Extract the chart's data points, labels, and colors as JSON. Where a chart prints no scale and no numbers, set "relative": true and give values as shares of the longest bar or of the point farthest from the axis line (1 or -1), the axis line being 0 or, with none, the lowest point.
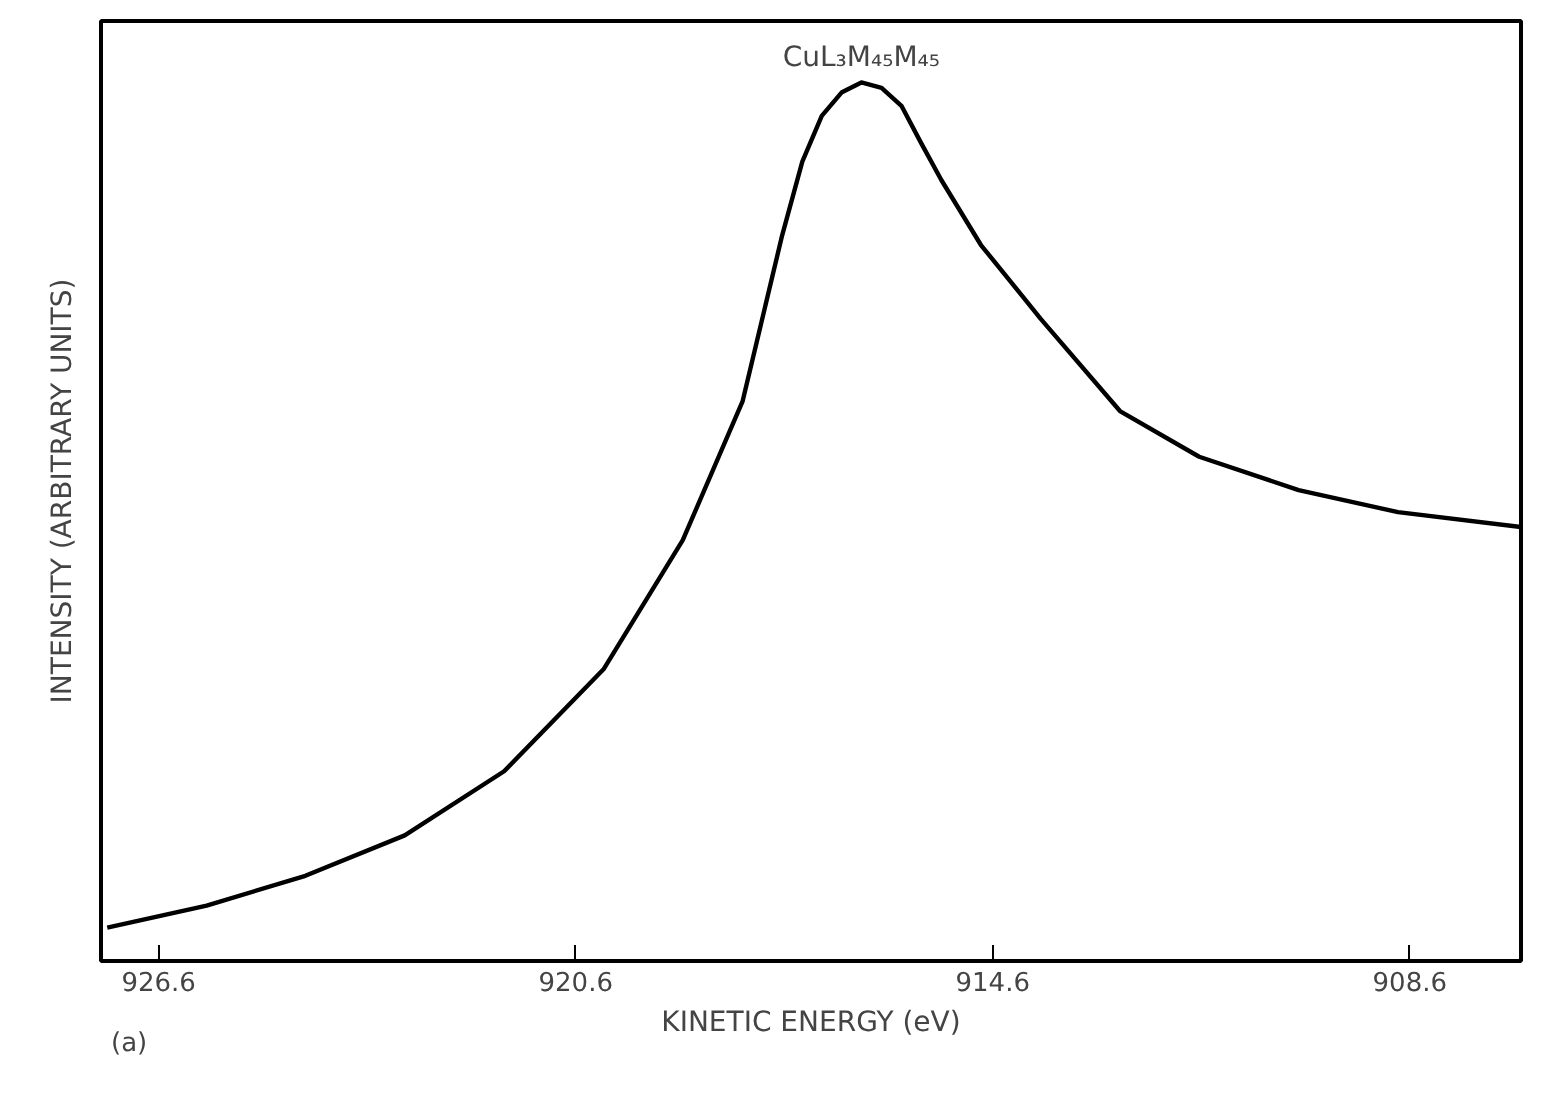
{
  "chart_data": {
    "type": "line",
    "xlabel": "KINETIC ENERGY (eV)",
    "ylabel": "INTENSITY (ARBITRARY UNITS)",
    "relative": true,
    "xlim": [
      927.43,
      907.0
    ],
    "xticks": [
      926.6,
      920.6,
      914.6,
      908.6
    ],
    "grid": false,
    "marker": "none",
    "line_style": "solid",
    "series": [
      {
        "color": "#000000",
        "x": [
          927.34,
          925.91,
          924.49,
          923.06,
          921.63,
          920.2,
          919.06,
          918.2,
          917.63,
          917.34,
          917.06,
          916.77,
          916.49,
          916.2,
          915.91,
          915.63,
          915.34,
          914.77,
          913.91,
          912.77,
          911.63,
          910.2,
          908.77,
          907.0
        ],
        "values": [
          0.038,
          0.063,
          0.097,
          0.143,
          0.216,
          0.332,
          0.479,
          0.637,
          0.826,
          0.91,
          0.962,
          0.989,
          1.0,
          0.994,
          0.973,
          0.931,
          0.889,
          0.815,
          0.731,
          0.626,
          0.574,
          0.536,
          0.511,
          0.494
        ]
      }
    ],
    "annotations": [
      {
        "text": "CuL₃M₄₅M₄₅",
        "x": 916.49,
        "y": 1.0
      },
      "(a)"
    ]
  }
}
